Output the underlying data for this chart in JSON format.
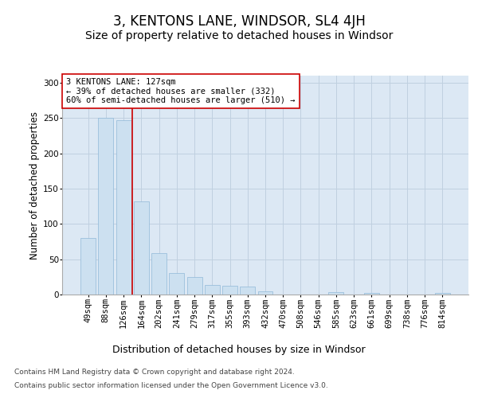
{
  "title": "3, KENTONS LANE, WINDSOR, SL4 4JH",
  "subtitle": "Size of property relative to detached houses in Windsor",
  "xlabel": "Distribution of detached houses by size in Windsor",
  "ylabel": "Number of detached properties",
  "categories": [
    "49sqm",
    "88sqm",
    "126sqm",
    "164sqm",
    "202sqm",
    "241sqm",
    "279sqm",
    "317sqm",
    "355sqm",
    "393sqm",
    "432sqm",
    "470sqm",
    "508sqm",
    "546sqm",
    "585sqm",
    "623sqm",
    "661sqm",
    "699sqm",
    "738sqm",
    "776sqm",
    "814sqm"
  ],
  "values": [
    80,
    250,
    247,
    132,
    59,
    31,
    25,
    14,
    12,
    11,
    4,
    0,
    0,
    0,
    3,
    0,
    2,
    0,
    0,
    0,
    2
  ],
  "bar_color": "#cce0f0",
  "bar_edge_color": "#90b8d8",
  "vline_x": 2.5,
  "vline_color": "#cc0000",
  "annotation_text": "3 KENTONS LANE: 127sqm\n← 39% of detached houses are smaller (332)\n60% of semi-detached houses are larger (510) →",
  "annotation_box_color": "#ffffff",
  "annotation_box_edge": "#cc0000",
  "ylim": [
    0,
    310
  ],
  "yticks": [
    0,
    50,
    100,
    150,
    200,
    250,
    300
  ],
  "grid_color": "#c0d0e0",
  "bg_color": "#dce8f4",
  "footer_line1": "Contains HM Land Registry data © Crown copyright and database right 2024.",
  "footer_line2": "Contains public sector information licensed under the Open Government Licence v3.0.",
  "title_fontsize": 12,
  "subtitle_fontsize": 10,
  "xlabel_fontsize": 9,
  "ylabel_fontsize": 8.5,
  "tick_fontsize": 7.5,
  "annotation_fontsize": 7.5,
  "footer_fontsize": 6.5
}
